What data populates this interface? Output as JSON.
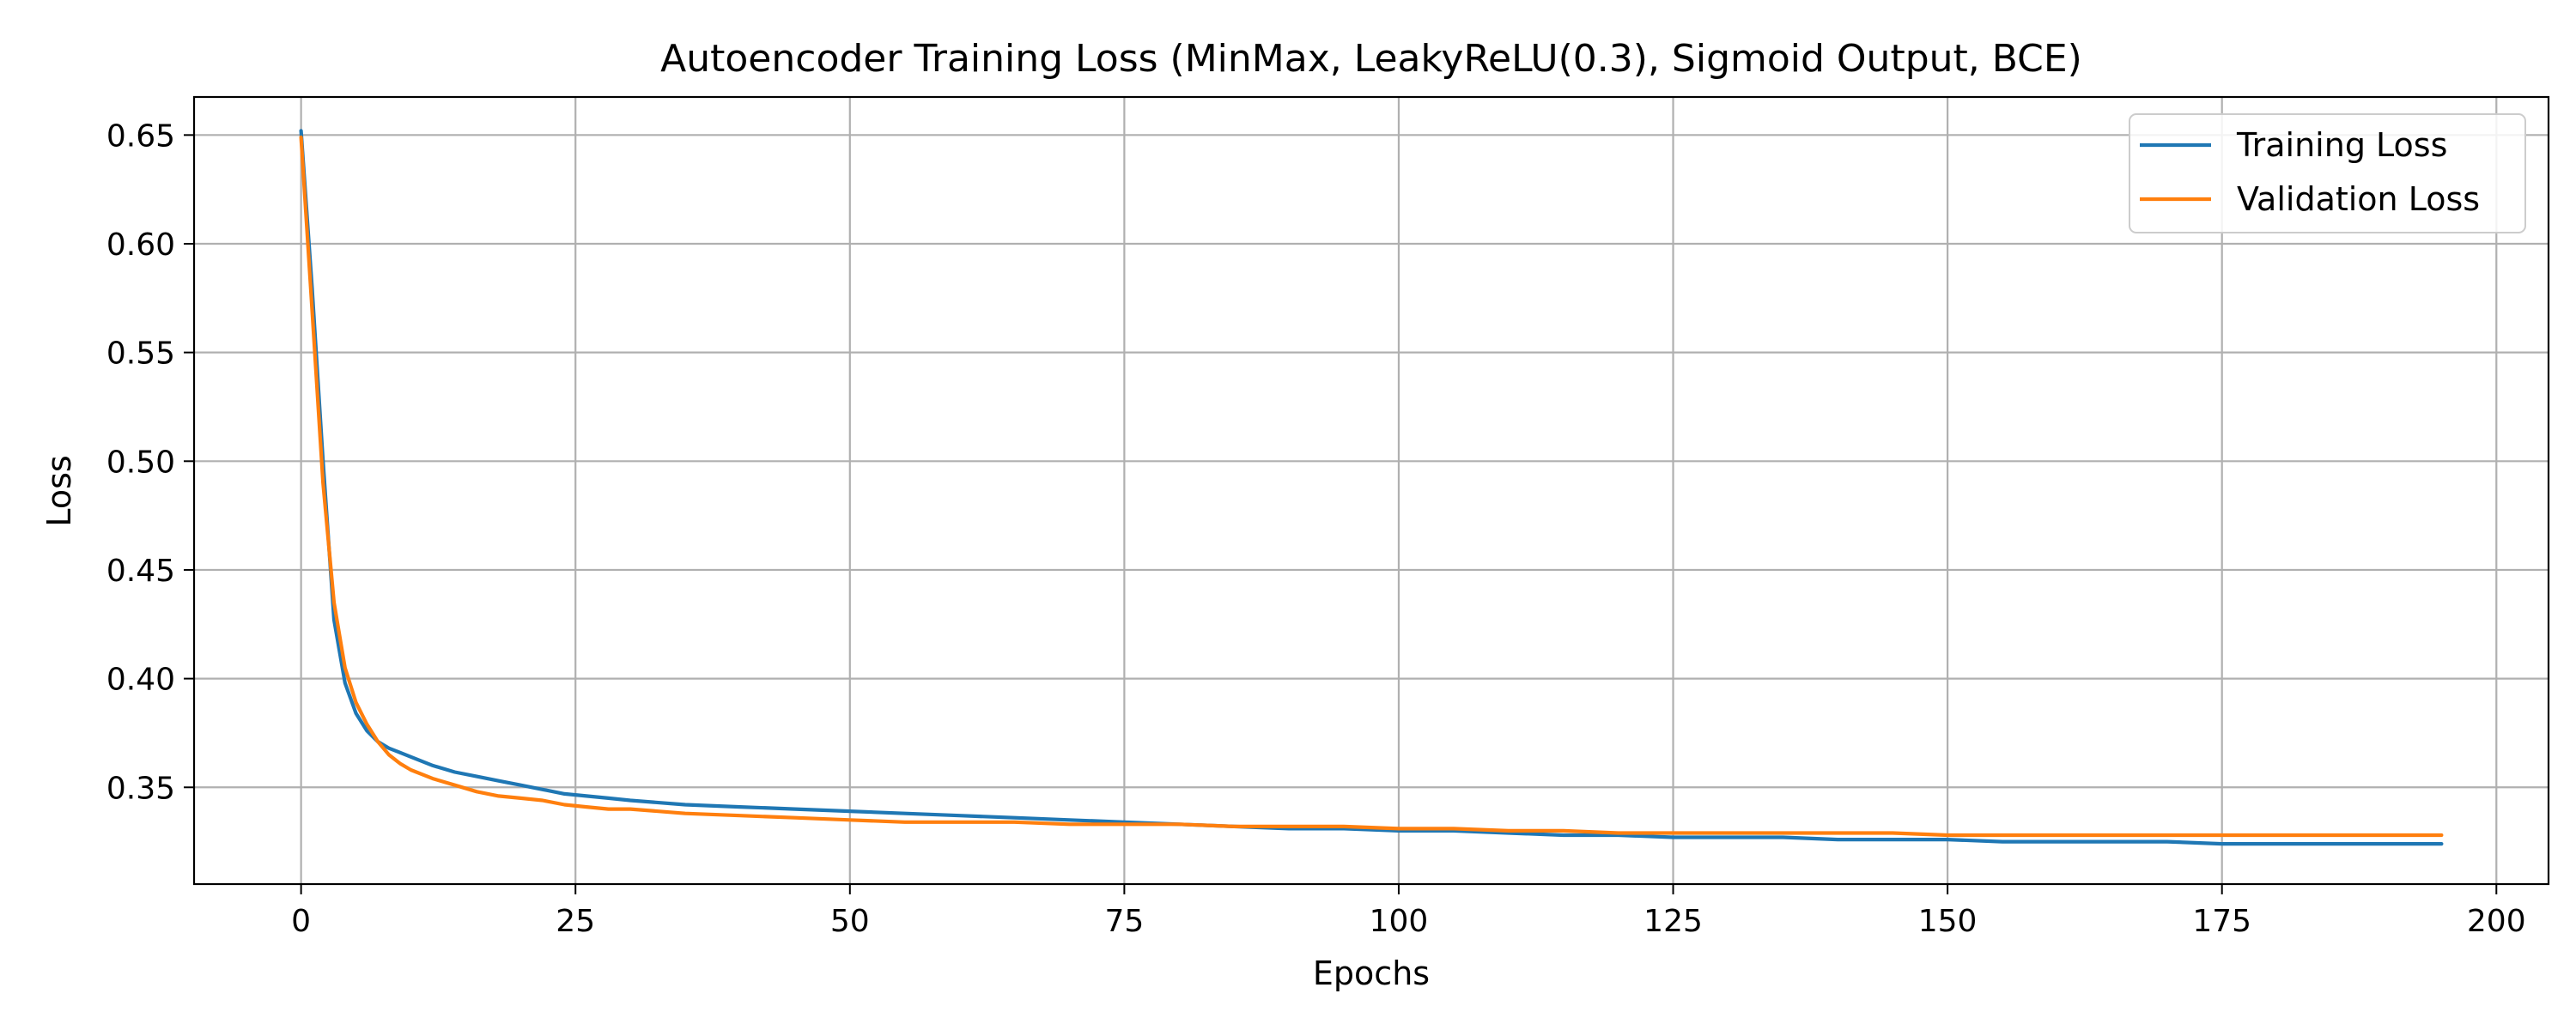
{
  "chart_data": {
    "type": "line",
    "title": "Autoencoder Training Loss (MinMax, LeakyReLU(0.3), Sigmoid Output, BCE)",
    "xlabel": "Epochs",
    "ylabel": "Loss",
    "xlim": [
      -9.75,
      204.75
    ],
    "ylim": [
      0.3055,
      0.6675
    ],
    "xticks": [
      0,
      25,
      50,
      75,
      100,
      125,
      150,
      175,
      200
    ],
    "yticks": [
      0.35,
      0.4,
      0.45,
      0.5,
      0.55,
      0.6,
      0.65
    ],
    "xtick_labels": [
      "0",
      "25",
      "50",
      "75",
      "100",
      "125",
      "150",
      "175",
      "200"
    ],
    "ytick_labels": [
      "0.35",
      "0.40",
      "0.45",
      "0.50",
      "0.55",
      "0.60",
      "0.65"
    ],
    "grid": true,
    "legend_position": "top-right",
    "series": [
      {
        "name": "Training Loss",
        "color": "#1f77b4",
        "x": [
          0,
          1,
          2,
          3,
          4,
          5,
          6,
          7,
          8,
          9,
          10,
          12,
          14,
          16,
          18,
          20,
          22,
          24,
          26,
          28,
          30,
          35,
          40,
          45,
          50,
          55,
          60,
          65,
          70,
          75,
          80,
          85,
          90,
          95,
          100,
          105,
          110,
          115,
          120,
          125,
          130,
          135,
          140,
          145,
          150,
          155,
          160,
          165,
          170,
          175,
          180,
          185,
          190,
          195
        ],
        "y": [
          0.652,
          0.58,
          0.5,
          0.427,
          0.398,
          0.384,
          0.376,
          0.371,
          0.368,
          0.366,
          0.364,
          0.36,
          0.357,
          0.355,
          0.353,
          0.351,
          0.349,
          0.347,
          0.346,
          0.345,
          0.344,
          0.342,
          0.341,
          0.34,
          0.339,
          0.338,
          0.337,
          0.336,
          0.335,
          0.334,
          0.333,
          0.332,
          0.331,
          0.331,
          0.33,
          0.33,
          0.329,
          0.328,
          0.328,
          0.327,
          0.327,
          0.327,
          0.326,
          0.326,
          0.326,
          0.325,
          0.325,
          0.325,
          0.325,
          0.324,
          0.324,
          0.324,
          0.324,
          0.324
        ]
      },
      {
        "name": "Validation Loss",
        "color": "#ff7f0e",
        "x": [
          0,
          1,
          2,
          3,
          4,
          5,
          6,
          7,
          8,
          9,
          10,
          12,
          14,
          16,
          18,
          20,
          22,
          24,
          26,
          28,
          30,
          35,
          40,
          45,
          50,
          55,
          60,
          65,
          70,
          75,
          80,
          85,
          90,
          95,
          100,
          105,
          110,
          115,
          120,
          125,
          130,
          135,
          140,
          145,
          150,
          155,
          160,
          165,
          170,
          175,
          180,
          185,
          190,
          195
        ],
        "y": [
          0.649,
          0.57,
          0.49,
          0.435,
          0.405,
          0.389,
          0.379,
          0.371,
          0.365,
          0.361,
          0.358,
          0.354,
          0.351,
          0.348,
          0.346,
          0.345,
          0.344,
          0.342,
          0.341,
          0.34,
          0.34,
          0.338,
          0.337,
          0.336,
          0.335,
          0.334,
          0.334,
          0.334,
          0.333,
          0.333,
          0.333,
          0.332,
          0.332,
          0.332,
          0.331,
          0.331,
          0.33,
          0.33,
          0.329,
          0.329,
          0.329,
          0.329,
          0.329,
          0.329,
          0.328,
          0.328,
          0.328,
          0.328,
          0.328,
          0.328,
          0.328,
          0.328,
          0.328,
          0.328
        ]
      }
    ]
  }
}
